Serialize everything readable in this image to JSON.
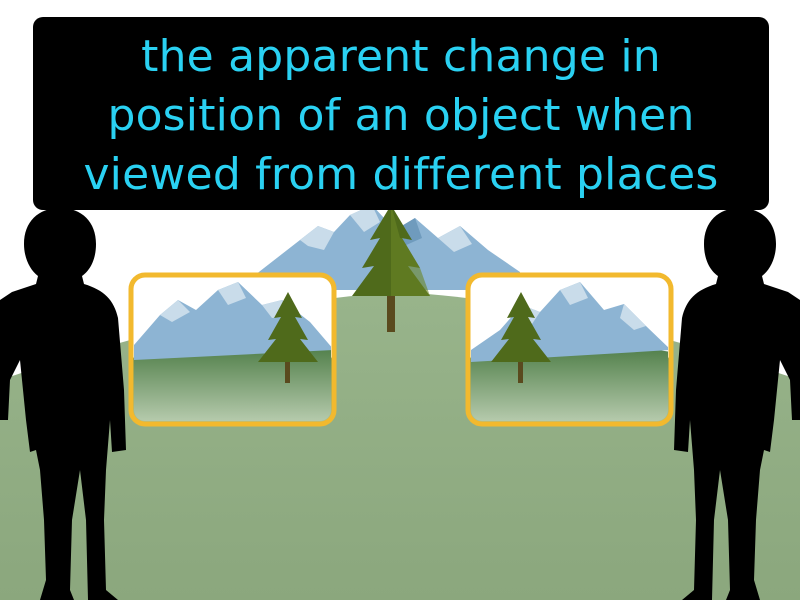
{
  "definition": {
    "lines": [
      "the apparent change in",
      "position of an object when",
      "viewed from different places"
    ]
  },
  "colors": {
    "caption_background": "#000000",
    "caption_text": "#2ad1f2",
    "ground": "#8fab82",
    "mountain": "#8db4d3",
    "tree": "#556b1f",
    "frame_border": "#f2b92e",
    "silhouette": "#000000"
  },
  "icons": [
    "mountain-icon",
    "pine-tree-icon",
    "person-silhouette-icon"
  ]
}
